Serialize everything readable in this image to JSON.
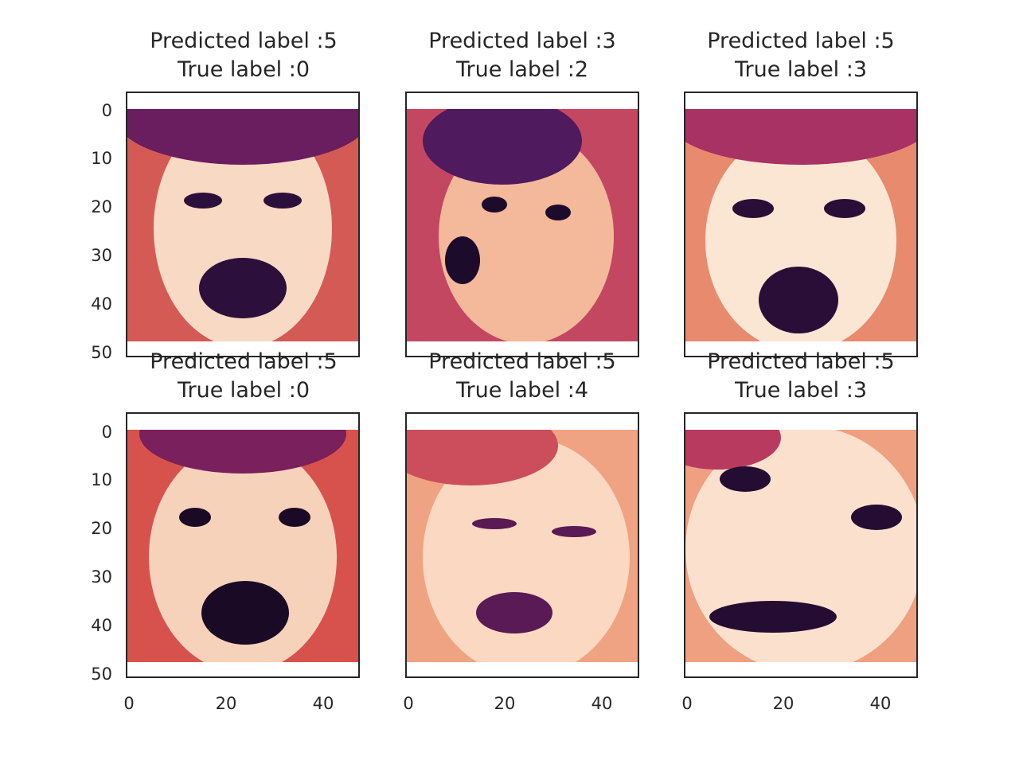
{
  "chart_data": [
    {
      "type": "image",
      "predicted_label": "Predicted label :5",
      "true_label": "True label :0",
      "colors": [
        "#f8d9c4",
        "#d45b55",
        "#6a1d5f",
        "#2c0f3a"
      ]
    },
    {
      "type": "image",
      "predicted_label": "Predicted label :3",
      "true_label": "True label :2",
      "colors": [
        "#f4b89a",
        "#c44761",
        "#4f1a5e",
        "#1d0b2b"
      ]
    },
    {
      "type": "image",
      "predicted_label": "Predicted label :5",
      "true_label": "True label :3",
      "colors": [
        "#fbe6d4",
        "#e88a6e",
        "#a83263",
        "#2a0e38"
      ]
    },
    {
      "type": "image",
      "predicted_label": "Predicted label :5",
      "true_label": "True label :0",
      "colors": [
        "#f7d2bb",
        "#d8524d",
        "#7a205c",
        "#1a0a26"
      ]
    },
    {
      "type": "image",
      "predicted_label": "Predicted label :5",
      "true_label": "True label :4",
      "colors": [
        "#fad8c2",
        "#f0a382",
        "#cc4e5c",
        "#5a1a55"
      ]
    },
    {
      "type": "image",
      "predicted_label": "Predicted label :5",
      "true_label": "True label :3",
      "colors": [
        "#fbe1cd",
        "#efa080",
        "#b93a5f",
        "#250c33"
      ]
    }
  ],
  "axes": {
    "yticks": [
      "0",
      "10",
      "20",
      "30",
      "40",
      "50"
    ],
    "xticks": [
      "0",
      "20",
      "40"
    ]
  }
}
